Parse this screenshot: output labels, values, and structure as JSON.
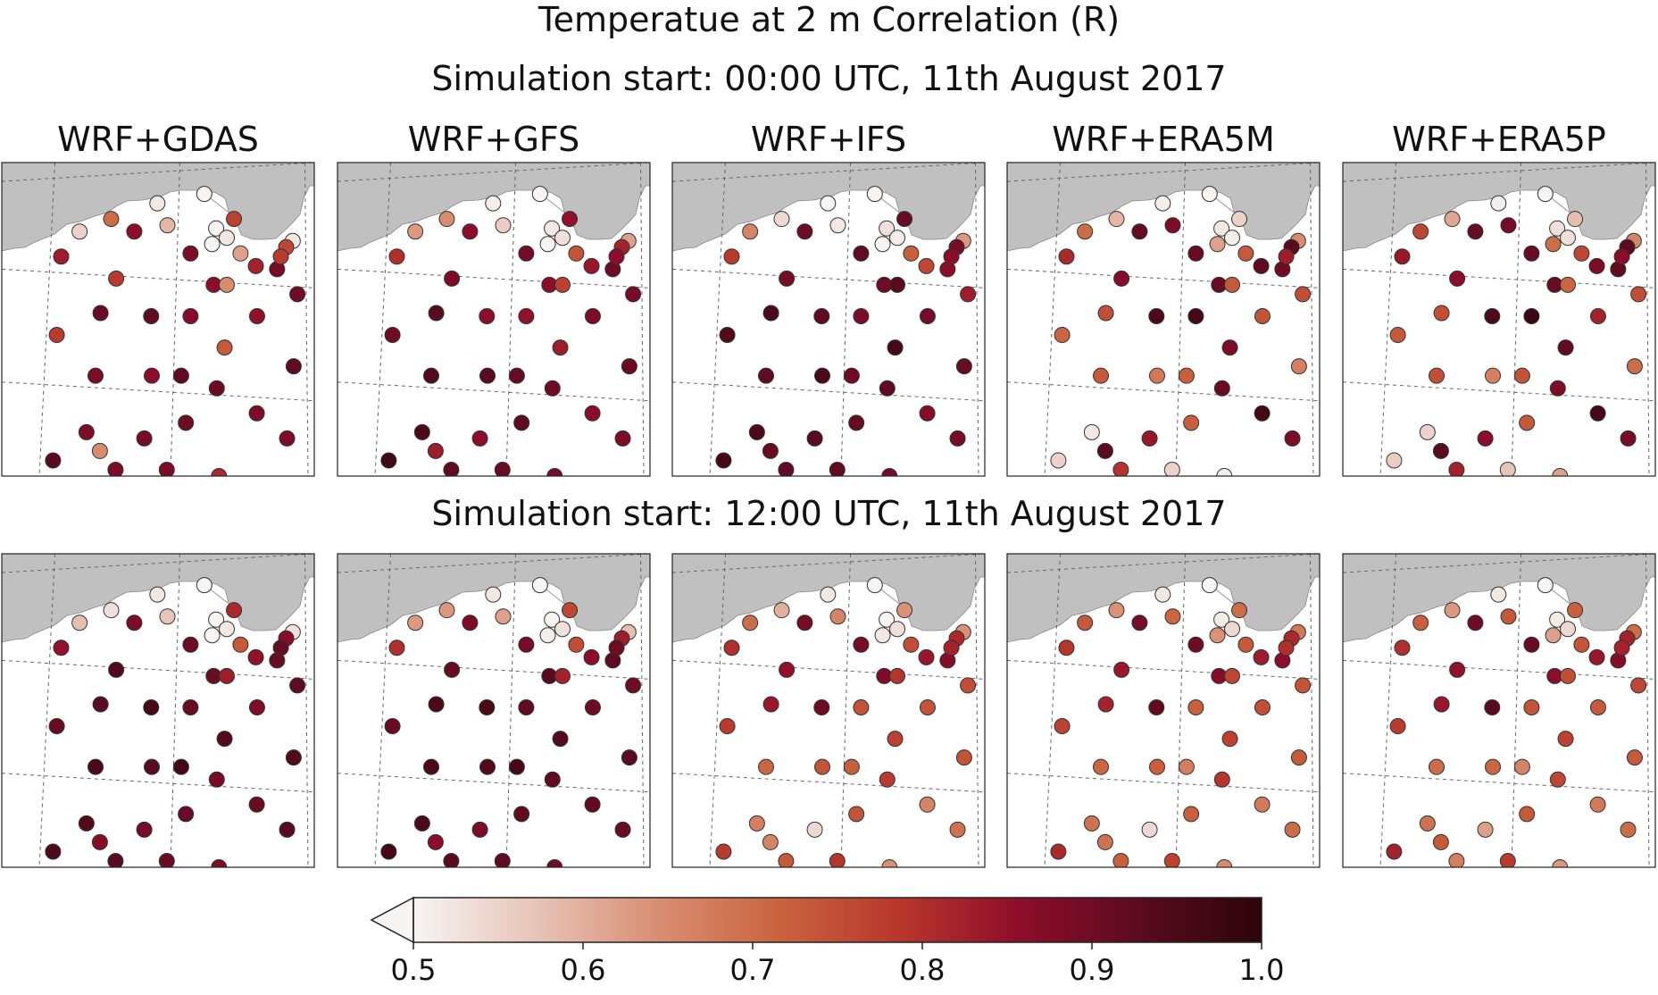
{
  "title": "Temperatue at 2 m Correlation (R)",
  "rows": [
    {
      "title": "Simulation start: 00:00 UTC, 11th August 2017"
    },
    {
      "title": "Simulation start: 12:00 UTC, 11th August 2017"
    }
  ],
  "columns": [
    "WRF+GDAS",
    "WRF+GFS",
    "WRF+IFS",
    "WRF+ERA5M",
    "WRF+ERA5P"
  ],
  "colorbar": {
    "ticks": [
      "0.5",
      "0.6",
      "0.7",
      "0.8",
      "0.9",
      "1.0"
    ],
    "min": 0.5,
    "max": 1.0,
    "extend": "min",
    "colors": [
      "#f7f4f2",
      "#e7c4b8",
      "#d98f74",
      "#c9643f",
      "#b8372c",
      "#8e0d2a",
      "#5a0b1f",
      "#2c0509"
    ]
  },
  "chart_data": {
    "type": "scatter",
    "title": "Temperatue at 2 m Correlation (R)",
    "color_variable": "Correlation (R)",
    "color_range": [
      0.5,
      1.0
    ],
    "stations": 43,
    "panels": [
      {
        "row": 0,
        "model": "WRF+GDAS",
        "values": [
          0.5,
          0.52,
          0.7,
          0.86,
          0.77,
          0.5,
          0.52,
          0.5,
          0.52,
          0.55,
          0.59,
          0.76,
          0.88,
          0.62,
          0.83,
          0.82,
          0.89,
          0.78,
          0.78,
          0.86,
          0.65,
          0.9,
          0.91,
          0.92,
          0.87,
          0.85,
          0.78,
          0.73,
          0.88,
          0.86,
          0.92,
          0.92,
          0.91,
          0.88,
          0.88,
          0.9,
          0.89,
          0.88,
          0.65,
          0.88,
          0.93,
          0.88,
          0.81
        ]
      },
      {
        "row": 0,
        "model": "WRF+GFS",
        "values": [
          0.5,
          0.51,
          0.65,
          0.86,
          0.85,
          0.52,
          0.53,
          0.5,
          0.62,
          0.63,
          0.56,
          0.82,
          0.89,
          0.74,
          0.8,
          0.84,
          0.9,
          0.86,
          0.88,
          0.86,
          0.77,
          0.89,
          0.93,
          0.86,
          0.85,
          0.88,
          0.9,
          0.83,
          0.94,
          0.93,
          0.91,
          0.91,
          0.9,
          0.86,
          0.95,
          0.92,
          0.86,
          0.88,
          0.83,
          0.92,
          0.97,
          0.91,
          0.89
        ]
      },
      {
        "row": 0,
        "model": "WRF+IFS",
        "values": [
          0.5,
          0.5,
          0.54,
          0.9,
          0.91,
          0.53,
          0.51,
          0.5,
          0.63,
          0.66,
          0.52,
          0.89,
          0.92,
          0.72,
          0.78,
          0.76,
          0.86,
          0.86,
          0.89,
          0.9,
          0.93,
          0.83,
          0.95,
          0.92,
          0.88,
          0.89,
          0.94,
          0.96,
          0.92,
          0.95,
          0.9,
          0.91,
          0.92,
          0.87,
          0.95,
          0.91,
          0.93,
          0.89,
          0.91,
          0.92,
          0.96,
          0.92,
          0.89
        ]
      },
      {
        "row": 0,
        "model": "WRF+ERA5M",
        "values": [
          0.5,
          0.51,
          0.59,
          0.91,
          0.55,
          0.52,
          0.51,
          0.62,
          0.65,
          0.7,
          0.88,
          0.93,
          0.91,
          0.73,
          0.81,
          0.92,
          0.9,
          0.83,
          0.87,
          0.91,
          0.73,
          0.75,
          0.75,
          0.95,
          0.96,
          0.74,
          0.71,
          0.88,
          0.73,
          0.68,
          0.72,
          0.67,
          0.91,
          0.96,
          0.52,
          0.72,
          0.84,
          0.88,
          0.93,
          0.79,
          0.55,
          0.55,
          0.51
        ]
      },
      {
        "row": 0,
        "model": "WRF+ERA5P",
        "values": [
          0.5,
          0.51,
          0.61,
          0.91,
          0.58,
          0.53,
          0.53,
          0.7,
          0.66,
          0.76,
          0.89,
          0.93,
          0.91,
          0.76,
          0.84,
          0.88,
          0.92,
          0.86,
          0.86,
          0.91,
          0.71,
          0.75,
          0.75,
          0.95,
          0.98,
          0.82,
          0.73,
          0.92,
          0.75,
          0.67,
          0.74,
          0.7,
          0.88,
          0.96,
          0.55,
          0.73,
          0.86,
          0.89,
          0.93,
          0.82,
          0.56,
          0.57,
          0.62
        ]
      },
      {
        "row": 1,
        "model": "WRF+GDAS",
        "values": [
          0.5,
          0.52,
          0.53,
          0.88,
          0.81,
          0.5,
          0.52,
          0.5,
          0.53,
          0.58,
          0.57,
          0.86,
          0.9,
          0.73,
          0.85,
          0.85,
          0.91,
          0.91,
          0.94,
          0.91,
          0.83,
          0.92,
          0.93,
          0.96,
          0.91,
          0.88,
          0.91,
          0.94,
          0.95,
          0.93,
          0.96,
          0.94,
          0.89,
          0.91,
          0.94,
          0.91,
          0.89,
          0.93,
          0.87,
          0.93,
          0.95,
          0.91,
          0.88
        ]
      },
      {
        "row": 1,
        "model": "WRF+GFS",
        "values": [
          0.5,
          0.52,
          0.63,
          0.88,
          0.76,
          0.5,
          0.53,
          0.51,
          0.58,
          0.63,
          0.62,
          0.83,
          0.89,
          0.75,
          0.8,
          0.86,
          0.92,
          0.9,
          0.91,
          0.93,
          0.82,
          0.9,
          0.95,
          0.95,
          0.92,
          0.9,
          0.91,
          0.94,
          0.95,
          0.94,
          0.96,
          0.93,
          0.92,
          0.92,
          0.95,
          0.92,
          0.88,
          0.91,
          0.86,
          0.93,
          0.96,
          0.92,
          0.9
        ]
      },
      {
        "row": 1,
        "model": "WRF+IFS",
        "values": [
          0.5,
          0.52,
          0.6,
          0.89,
          0.64,
          0.5,
          0.53,
          0.52,
          0.64,
          0.7,
          0.66,
          0.81,
          0.89,
          0.75,
          0.8,
          0.84,
          0.87,
          0.82,
          0.85,
          0.88,
          0.79,
          0.75,
          0.84,
          0.9,
          0.74,
          0.74,
          0.78,
          0.77,
          0.71,
          0.74,
          0.72,
          0.74,
          0.78,
          0.66,
          0.67,
          0.74,
          0.54,
          0.69,
          0.66,
          0.73,
          0.78,
          0.79,
          0.64
        ]
      },
      {
        "row": 1,
        "model": "WRF+ERA5M",
        "values": [
          0.5,
          0.52,
          0.64,
          0.89,
          0.7,
          0.51,
          0.54,
          0.64,
          0.68,
          0.73,
          0.71,
          0.81,
          0.9,
          0.73,
          0.79,
          0.83,
          0.86,
          0.8,
          0.84,
          0.87,
          0.76,
          0.74,
          0.82,
          0.92,
          0.72,
          0.75,
          0.77,
          0.77,
          0.71,
          0.72,
          0.67,
          0.73,
          0.79,
          0.68,
          0.69,
          0.72,
          0.54,
          0.7,
          0.69,
          0.72,
          0.81,
          0.77,
          0.65
        ]
      },
      {
        "row": 1,
        "model": "WRF+ERA5P",
        "values": [
          0.5,
          0.52,
          0.63,
          0.9,
          0.72,
          0.51,
          0.54,
          0.62,
          0.7,
          0.72,
          0.73,
          0.82,
          0.91,
          0.74,
          0.8,
          0.84,
          0.87,
          0.82,
          0.85,
          0.86,
          0.75,
          0.76,
          0.84,
          0.93,
          0.74,
          0.73,
          0.78,
          0.77,
          0.7,
          0.71,
          0.66,
          0.73,
          0.76,
          0.68,
          0.69,
          0.73,
          0.62,
          0.7,
          0.73,
          0.67,
          0.82,
          0.78,
          0.63
        ]
      }
    ]
  }
}
